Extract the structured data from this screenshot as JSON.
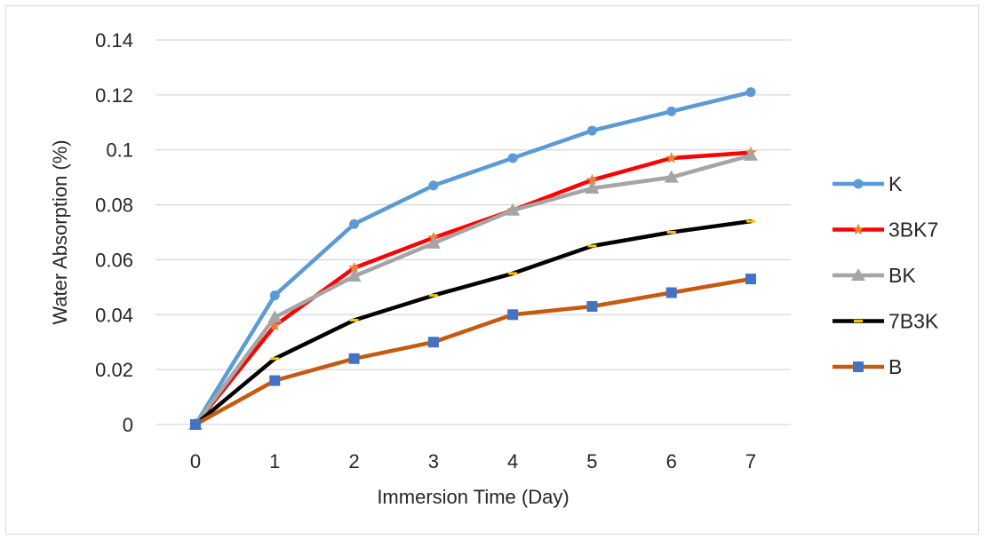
{
  "chart_data": {
    "type": "line",
    "xlabel": "Immersion Time (Day)",
    "ylabel": "Water Absorption (%)",
    "x": [
      0,
      1,
      2,
      3,
      4,
      5,
      6,
      7
    ],
    "xlim": [
      0,
      7
    ],
    "ylim": [
      0,
      0.14
    ],
    "yticks": [
      "0",
      "0.02",
      "0.04",
      "0.06",
      "0.08",
      "0.1",
      "0.12",
      "0.14"
    ],
    "xticks": [
      "0",
      "1",
      "2",
      "3",
      "4",
      "5",
      "6",
      "7"
    ],
    "grid": "horizontal",
    "legend_position": "right",
    "series": [
      {
        "name": "K",
        "color": "#5b9bd5",
        "marker": "circle",
        "values": [
          0,
          0.047,
          0.073,
          0.087,
          0.097,
          0.107,
          0.114,
          0.121
        ]
      },
      {
        "name": "3BK7",
        "color": "#ff0000",
        "marker": "star",
        "marker_color": "#ed7d31",
        "values": [
          0,
          0.036,
          0.057,
          0.068,
          0.078,
          0.089,
          0.097,
          0.099
        ]
      },
      {
        "name": "BK",
        "color": "#a5a5a5",
        "marker": "triangle",
        "values": [
          0,
          0.039,
          0.054,
          0.066,
          0.078,
          0.086,
          0.09,
          0.098
        ]
      },
      {
        "name": "7B3K",
        "color": "#000000",
        "marker": "dash",
        "marker_color": "#ffc000",
        "values": [
          0,
          0.024,
          0.038,
          0.047,
          0.055,
          0.065,
          0.07,
          0.074
        ]
      },
      {
        "name": "B",
        "color": "#c55a11",
        "marker": "square",
        "marker_color": "#4472c4",
        "values": [
          0,
          0.016,
          0.024,
          0.03,
          0.04,
          0.043,
          0.048,
          0.053
        ]
      }
    ]
  }
}
